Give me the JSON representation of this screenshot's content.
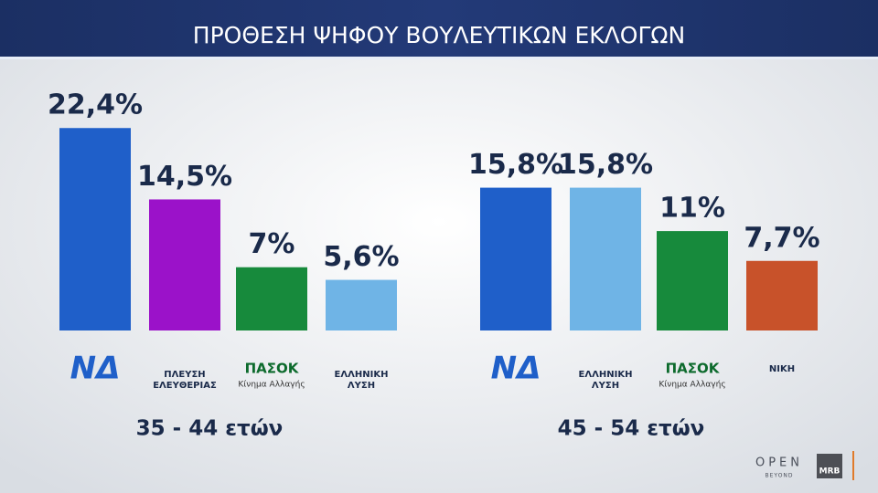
{
  "header": {
    "title": "ΠΡΟΘΕΣΗ ΨΗΦΟΥ ΒΟΥΛΕΥΤΙΚΩΝ ΕΚΛΟΓΩΝ"
  },
  "chart_data": [
    {
      "type": "bar",
      "x_label": "35 - 44 ετών",
      "categories": [
        "ΝΔ",
        "ΠΛΕΥΣΗ ΕΛΕΥΘΕΡΙΑΣ",
        "ΠΑΣΟΚ",
        "ΕΛΛΗΝΙΚΗ ΛΥΣΗ"
      ],
      "category_notes": [
        null,
        null,
        "Κίνημα Αλλαγής",
        null
      ],
      "values": [
        22.4,
        14.5,
        7,
        5.6
      ],
      "value_labels": [
        "22,4%",
        "14,5%",
        "7%",
        "5,6%"
      ],
      "colors": [
        "#1f5fc9",
        "#9b12c9",
        "#178a3c",
        "#6fb4e6"
      ]
    },
    {
      "type": "bar",
      "x_label": "45 - 54 ετών",
      "categories": [
        "ΝΔ",
        "ΕΛΛΗΝΙΚΗ ΛΥΣΗ",
        "ΠΑΣΟΚ",
        "ΝΙΚΗ"
      ],
      "category_notes": [
        null,
        null,
        "Κίνημα Αλλαγής",
        null
      ],
      "values": [
        15.8,
        15.8,
        11,
        7.7
      ],
      "value_labels": [
        "15,8%",
        "15,8%",
        "11%",
        "7,7%"
      ],
      "colors": [
        "#1f5fc9",
        "#6fb4e6",
        "#178a3c",
        "#c8522a"
      ]
    }
  ],
  "footer": {
    "brand": "OPEN",
    "brand_sub": "BEYOND",
    "source": "MRB"
  }
}
